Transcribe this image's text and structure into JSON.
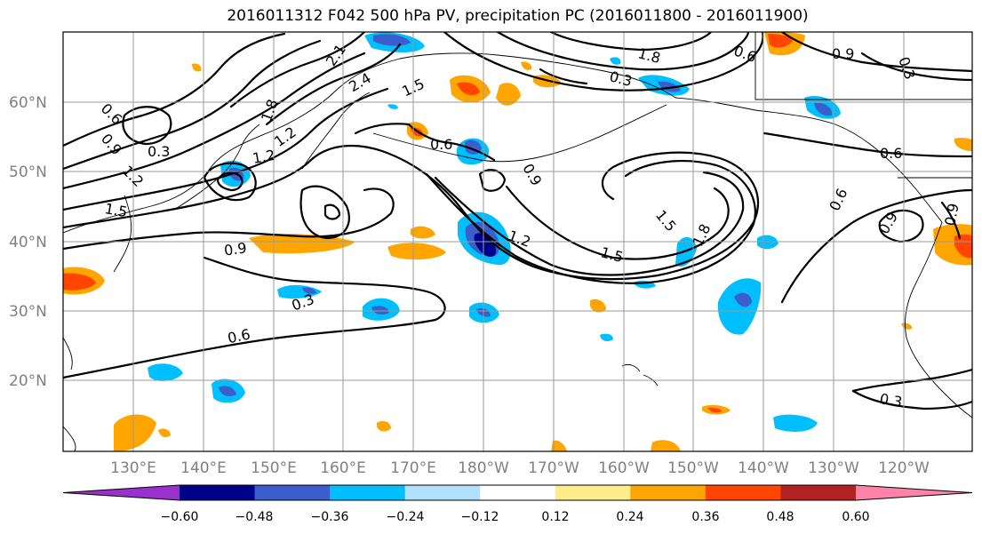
{
  "title": "2016011312 F042 500 hPa PV, precipitation PC (2016011800 - 2016011900)",
  "lat_labels": [
    "60°N",
    "50°N",
    "40°N",
    "30°N",
    "20°N"
  ],
  "lon_labels": [
    "130°E",
    "140°E",
    "150°E",
    "160°E",
    "170°E",
    "180°W",
    "170°W",
    "160°W",
    "150°W",
    "140°W",
    "130°W",
    "120°W"
  ],
  "colorbar": {
    "colors": [
      "#9932cc",
      "#00008b",
      "#3a5fcd",
      "#00bfff",
      "#b0e2ff",
      "#ffffff",
      "#ffec8b",
      "#ffa500",
      "#ff4500",
      "#b22222",
      "#ff82ab"
    ],
    "ticks": [
      "−0.60",
      "−0.48",
      "−0.36",
      "−0.24",
      "−0.12",
      "0.12",
      "0.24",
      "0.36",
      "0.48",
      "0.60"
    ]
  },
  "contour_labels": [
    "2.1",
    "2.4",
    "1.5",
    "1.8",
    "1.2",
    "0.6",
    "0.9",
    "0.3",
    "1.2",
    "1.5",
    "0.6",
    "1.2",
    "0.9",
    "0.3",
    "0.6",
    "0.9",
    "1.2",
    "1.5",
    "1.8",
    "1.5",
    "1.8",
    "0.6",
    "0.3",
    "0.9",
    "0.6",
    "0.9",
    "0.6",
    "0.9",
    "0.3",
    "0.3"
  ]
}
